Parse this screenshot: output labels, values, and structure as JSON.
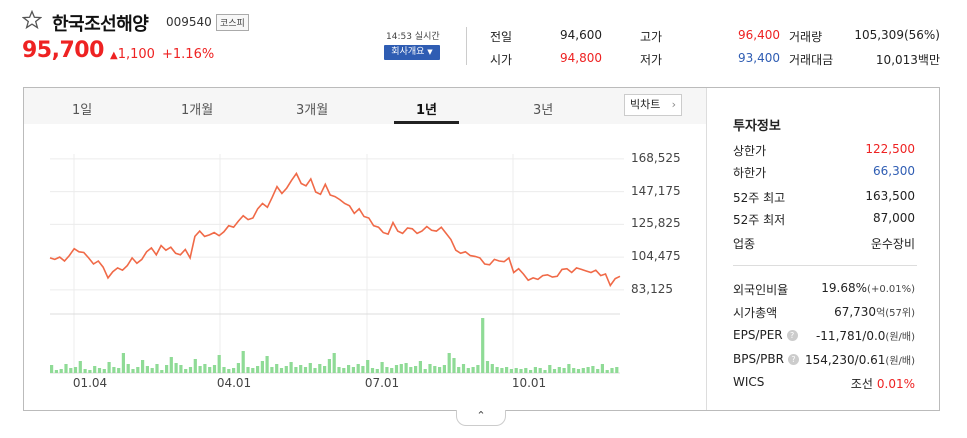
{
  "header": {
    "name": "한국조선해양",
    "code": "009540",
    "market": "코스피",
    "price": "95,700",
    "change": "1,100",
    "change_pct": "+1.16%",
    "realtime": "14:53 실시간",
    "company_button": "회사개요"
  },
  "quotes": [
    {
      "label": "전일",
      "value": "94,600"
    },
    {
      "label": "고가",
      "value": "96,400"
    },
    {
      "label": "거래량",
      "value": "105,309(56%)"
    },
    {
      "label": "시가",
      "value": "94,800"
    },
    {
      "label": "저가",
      "value": "93,400"
    },
    {
      "label": "거래대금",
      "value": "10,013백만"
    }
  ],
  "tabs": [
    "1일",
    "1개월",
    "3개월",
    "1년",
    "3년"
  ],
  "active_tab": "1년",
  "big_chart_button": "빅차트",
  "info": {
    "title": "투자정보",
    "rows": [
      {
        "label": "상한가",
        "value": "122,500"
      },
      {
        "label": "하한가",
        "value": "66,300"
      },
      {
        "label": "52주 최고",
        "value": "163,500"
      },
      {
        "label": "52주 최저",
        "value": "87,000"
      },
      {
        "label": "업종",
        "value": "운수장비"
      }
    ],
    "rows2": [
      {
        "label": "외국인비율",
        "value": "19.68%",
        "extra": "(+0.01%)"
      },
      {
        "label": "시가총액",
        "value": "67,730",
        "extra": "억(57위)"
      },
      {
        "label": "EPS/PER",
        "value": "-11,781/0.0",
        "extra": "(원/배)"
      },
      {
        "label": "BPS/PBR",
        "value": "154,230/0.61",
        "extra": "(원/배)"
      },
      {
        "label": "WICS",
        "value": "조선",
        "extra": "0.01%"
      }
    ]
  },
  "chart_data": {
    "type": "line",
    "ylim": [
      72000,
      175000
    ],
    "y_ticks": [
      "168,525",
      "147,175",
      "125,825",
      "104,475",
      "83,125"
    ],
    "x_ticks": [
      "01.04",
      "04.01",
      "07.01",
      "10.01"
    ],
    "line_color": "#f06a48",
    "volume_color": "#8fdb96",
    "price_series": [
      104000,
      103000,
      104500,
      102000,
      105500,
      110000,
      108000,
      107500,
      104000,
      100000,
      102000,
      98000,
      91000,
      95000,
      97500,
      96000,
      99000,
      104000,
      100500,
      103000,
      108000,
      110500,
      106000,
      112000,
      109000,
      111000,
      107000,
      106000,
      109500,
      104000,
      118000,
      121500,
      118000,
      119000,
      120500,
      118500,
      121000,
      125000,
      124000,
      128000,
      131500,
      129000,
      130000,
      136000,
      139500,
      137000,
      143500,
      150500,
      146000,
      149500,
      154500,
      159000,
      152500,
      151000,
      155500,
      147000,
      145500,
      152000,
      145000,
      144000,
      142000,
      139500,
      138000,
      133000,
      136000,
      131000,
      130000,
      125000,
      124000,
      120500,
      119500,
      127000,
      121500,
      120000,
      123500,
      123000,
      120000,
      121500,
      124500,
      122000,
      121500,
      124000,
      120000,
      116000,
      109000,
      107000,
      108000,
      105500,
      105000,
      104000,
      100000,
      99500,
      103000,
      102000,
      101500,
      104000,
      94500,
      97000,
      93500,
      89500,
      91000,
      90000,
      92500,
      93000,
      91500,
      92000,
      96500,
      97000,
      94500,
      97500,
      96500,
      95500,
      94500,
      96000,
      92500,
      93500,
      86000,
      90500,
      92000
    ],
    "volume_series": [
      8,
      3,
      4,
      9,
      5,
      6,
      12,
      4,
      3,
      7,
      5,
      4,
      11,
      6,
      5,
      20,
      9,
      4,
      6,
      13,
      7,
      5,
      9,
      3,
      8,
      16,
      10,
      8,
      4,
      6,
      14,
      7,
      9,
      6,
      8,
      18,
      6,
      4,
      5,
      10,
      22,
      6,
      5,
      7,
      12,
      17,
      6,
      9,
      5,
      7,
      11,
      6,
      8,
      6,
      10,
      5,
      9,
      7,
      14,
      20,
      6,
      5,
      8,
      6,
      9,
      7,
      13,
      5,
      4,
      11,
      6,
      5,
      8,
      9,
      10,
      6,
      7,
      12,
      4,
      9,
      7,
      6,
      8,
      20,
      15,
      6,
      9,
      5,
      6,
      8,
      55,
      12,
      9,
      6,
      5,
      6,
      4,
      5,
      4,
      5,
      3,
      6,
      5,
      3,
      8,
      4,
      6,
      5,
      9,
      5,
      4,
      5,
      6,
      7,
      4,
      9,
      3,
      5,
      6
    ]
  }
}
